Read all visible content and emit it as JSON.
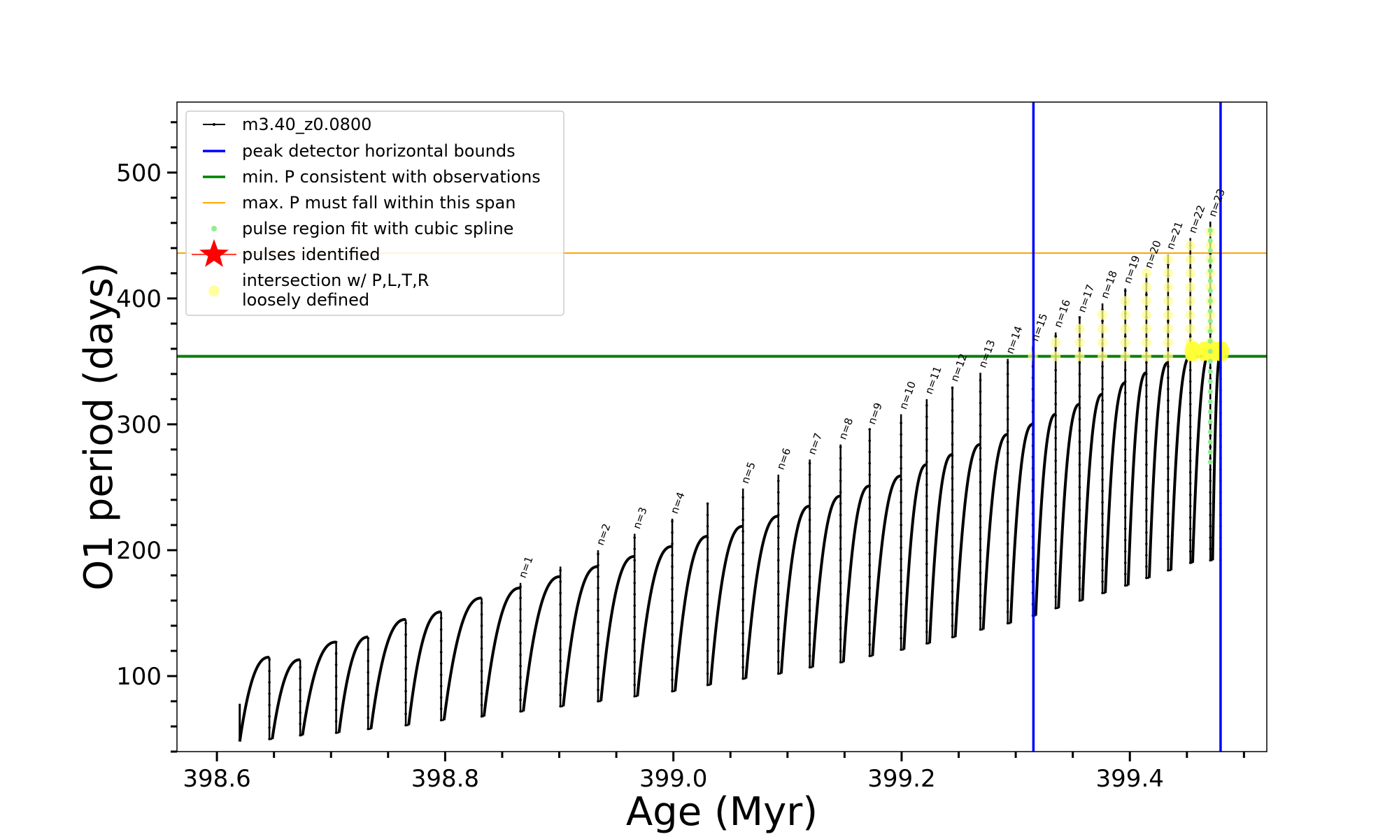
{
  "chart_data": {
    "type": "line",
    "xlabel": "Age (Myr)",
    "ylabel": "O1 period (days)",
    "xlim": [
      398.565,
      399.52
    ],
    "ylim": [
      40,
      556
    ],
    "xticks": [
      398.6,
      398.8,
      399.0,
      399.2,
      399.4
    ],
    "xtick_labels": [
      "398.6",
      "398.8",
      "399.0",
      "399.2",
      "399.4"
    ],
    "yticks": [
      100,
      200,
      300,
      400,
      500
    ],
    "ytick_labels": [
      "100",
      "200",
      "300",
      "400",
      "500"
    ],
    "legend_position": "upper-left",
    "legend": [
      {
        "label": "m3.40_z0.0800",
        "kind": "line-marker",
        "color": "#000000"
      },
      {
        "label": "peak detector horizontal bounds",
        "kind": "line",
        "color": "#0000ff"
      },
      {
        "label": "min. P consistent with observations",
        "kind": "line",
        "color": "#008000"
      },
      {
        "label": "max. P must fall within this span",
        "kind": "line",
        "color": "#ffa500"
      },
      {
        "label": "pulse region fit with cubic spline",
        "kind": "dot",
        "color": "#90ee90"
      },
      {
        "label": "pulses identified",
        "kind": "star",
        "color": "#ff0000"
      },
      {
        "label": "intersection w/ P,L,T,R\nloosely defined",
        "kind": "dot",
        "color": "#ffffa0"
      }
    ],
    "hlines": [
      {
        "y": 354,
        "color": "#008000"
      },
      {
        "y": 436,
        "color": "#ffa500"
      }
    ],
    "vlines": [
      {
        "x": 399.3155,
        "color": "#0000ff"
      },
      {
        "x": 399.4795,
        "color": "#0000ff"
      }
    ],
    "cycles": [
      {
        "start": 398.62,
        "end": 398.646,
        "min": 48,
        "max": 115,
        "spike": 78
      },
      {
        "start": 398.6485,
        "end": 398.673,
        "min": 50,
        "max": 113,
        "spike": null
      },
      {
        "start": 398.675,
        "end": 398.7045,
        "min": 53,
        "max": 127,
        "spike": null
      },
      {
        "start": 398.707,
        "end": 398.7325,
        "min": 55,
        "max": 131,
        "spike": null
      },
      {
        "start": 398.735,
        "end": 398.7655,
        "min": 58,
        "max": 145,
        "spike": null
      },
      {
        "start": 398.768,
        "end": 398.7965,
        "min": 61,
        "max": 151,
        "spike": null
      },
      {
        "start": 398.799,
        "end": 398.832,
        "min": 65,
        "max": 162,
        "spike": null
      },
      {
        "start": 398.834,
        "end": 398.866,
        "min": 68,
        "max": 170,
        "spike": 174
      },
      {
        "start": 398.8685,
        "end": 398.901,
        "min": 72,
        "max": 179,
        "spike": 187
      },
      {
        "start": 398.9035,
        "end": 398.934,
        "min": 76,
        "max": 187,
        "spike": 200
      },
      {
        "start": 398.9365,
        "end": 398.966,
        "min": 80,
        "max": 195,
        "spike": 213
      },
      {
        "start": 398.9685,
        "end": 398.999,
        "min": 84,
        "max": 203,
        "spike": 225
      },
      {
        "start": 399.0015,
        "end": 399.03,
        "min": 88,
        "max": 211,
        "spike": 237
      },
      {
        "start": 399.0325,
        "end": 399.061,
        "min": 93,
        "max": 219,
        "spike": 249
      },
      {
        "start": 399.0635,
        "end": 399.092,
        "min": 98,
        "max": 227,
        "spike": 260
      },
      {
        "start": 399.0945,
        "end": 399.1195,
        "min": 102,
        "max": 235,
        "spike": 272
      },
      {
        "start": 399.122,
        "end": 399.1465,
        "min": 107,
        "max": 243,
        "spike": 284
      },
      {
        "start": 399.149,
        "end": 399.172,
        "min": 111,
        "max": 251,
        "spike": 296
      },
      {
        "start": 399.1745,
        "end": 399.1995,
        "min": 116,
        "max": 259,
        "spike": 308
      },
      {
        "start": 399.202,
        "end": 399.222,
        "min": 121,
        "max": 268,
        "spike": 320
      },
      {
        "start": 399.2245,
        "end": 399.2445,
        "min": 126,
        "max": 276,
        "spike": 330
      },
      {
        "start": 399.247,
        "end": 399.269,
        "min": 131,
        "max": 284,
        "spike": 341
      },
      {
        "start": 399.2715,
        "end": 399.293,
        "min": 137,
        "max": 292,
        "spike": 352
      },
      {
        "start": 399.2955,
        "end": 399.315,
        "min": 142,
        "max": 300,
        "spike": 362
      },
      {
        "start": 399.3175,
        "end": 399.335,
        "min": 148,
        "max": 308,
        "spike": 373
      },
      {
        "start": 399.3375,
        "end": 399.356,
        "min": 154,
        "max": 316,
        "spike": 385
      },
      {
        "start": 399.3585,
        "end": 399.376,
        "min": 160,
        "max": 324,
        "spike": 396
      },
      {
        "start": 399.3785,
        "end": 399.396,
        "min": 166,
        "max": 333,
        "spike": 408
      },
      {
        "start": 399.3985,
        "end": 399.4145,
        "min": 172,
        "max": 341,
        "spike": 420
      },
      {
        "start": 399.417,
        "end": 399.4335,
        "min": 178,
        "max": 349,
        "spike": 435
      },
      {
        "start": 399.436,
        "end": 399.453,
        "min": 184,
        "max": 354,
        "spike": 448
      },
      {
        "start": 399.455,
        "end": 399.4705,
        "min": 190,
        "max": 358,
        "spike": 461
      },
      {
        "start": 399.4725,
        "end": 399.4795,
        "min": 192,
        "max": 356,
        "spike": null
      }
    ],
    "pulse_labels": [
      {
        "text": "n=1",
        "x": 398.866,
        "y": 174
      },
      {
        "text": "n=2",
        "x": 398.934,
        "y": 200
      },
      {
        "text": "n=3",
        "x": 398.966,
        "y": 213
      },
      {
        "text": "n=4",
        "x": 398.999,
        "y": 225
      },
      {
        "text": "n=5",
        "x": 399.061,
        "y": 249
      },
      {
        "text": "n=6",
        "x": 399.092,
        "y": 260
      },
      {
        "text": "n=7",
        "x": 399.1195,
        "y": 272
      },
      {
        "text": "n=8",
        "x": 399.1465,
        "y": 284
      },
      {
        "text": "n=9",
        "x": 399.172,
        "y": 296
      },
      {
        "text": "n=10",
        "x": 399.1995,
        "y": 308
      },
      {
        "text": "n=11",
        "x": 399.222,
        "y": 320
      },
      {
        "text": "n=12",
        "x": 399.2445,
        "y": 330
      },
      {
        "text": "n=13",
        "x": 399.269,
        "y": 341
      },
      {
        "text": "n=14",
        "x": 399.293,
        "y": 352
      },
      {
        "text": "n=15",
        "x": 399.315,
        "y": 362
      },
      {
        "text": "n=16",
        "x": 399.335,
        "y": 373
      },
      {
        "text": "n=17",
        "x": 399.356,
        "y": 385
      },
      {
        "text": "n=18",
        "x": 399.376,
        "y": 396
      },
      {
        "text": "n=19",
        "x": 399.396,
        "y": 408
      },
      {
        "text": "n=20",
        "x": 399.4145,
        "y": 420
      },
      {
        "text": "n=21",
        "x": 399.4335,
        "y": 435
      },
      {
        "text": "n=22",
        "x": 399.453,
        "y": 448
      },
      {
        "text": "n=23",
        "x": 399.4705,
        "y": 461
      }
    ],
    "yellow_pulse_markers_from_index": 14
  }
}
